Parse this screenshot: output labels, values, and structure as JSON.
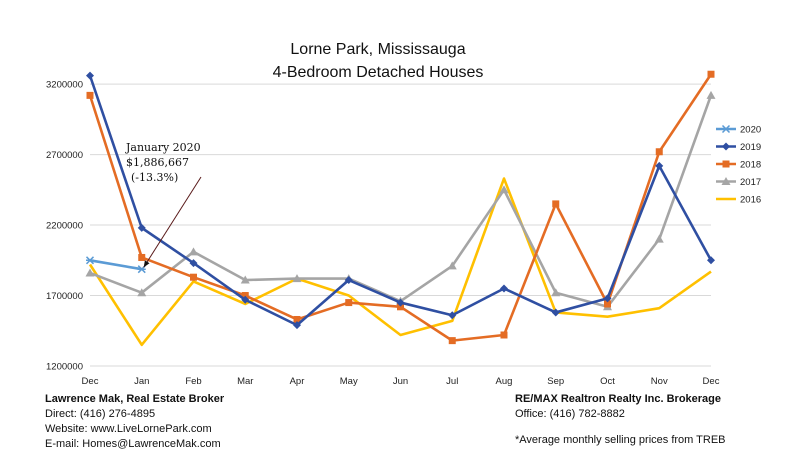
{
  "chart_data": {
    "type": "line",
    "title": [
      "Lorne Park, Mississauga",
      "4-Bedroom Detached Houses"
    ],
    "categories": [
      "Dec",
      "Jan",
      "Feb",
      "Mar",
      "Apr",
      "May",
      "Jun",
      "Jul",
      "Aug",
      "Sep",
      "Oct",
      "Nov",
      "Dec"
    ],
    "ylim": [
      1200000,
      3300000
    ],
    "yticks": [
      "1200000",
      "1700000",
      "2200000",
      "2700000",
      "3200000"
    ],
    "grid": "horizontal",
    "legend_position": "right",
    "series": [
      {
        "name": "2020",
        "color": "#5b9bd5",
        "marker": "x",
        "values": [
          1950000,
          1886667,
          null,
          null,
          null,
          null,
          null,
          null,
          null,
          null,
          null,
          null,
          null
        ]
      },
      {
        "name": "2019",
        "color": "#2f4fa2",
        "marker": "diamond",
        "values": [
          3260000,
          2180000,
          1930000,
          1670000,
          1490000,
          1810000,
          1650000,
          1560000,
          1750000,
          1580000,
          1680000,
          2620000,
          1950000
        ]
      },
      {
        "name": "2018",
        "color": "#e46c24",
        "marker": "square",
        "values": [
          3120000,
          1970000,
          1830000,
          1700000,
          1530000,
          1650000,
          1620000,
          1380000,
          1420000,
          2350000,
          1640000,
          2720000,
          3270000
        ]
      },
      {
        "name": "2017",
        "color": "#a5a5a5",
        "marker": "triangle",
        "values": [
          1860000,
          1720000,
          2010000,
          1810000,
          1820000,
          1820000,
          1660000,
          1910000,
          2450000,
          1720000,
          1620000,
          2100000,
          3120000
        ]
      },
      {
        "name": "2016",
        "color": "#ffc000",
        "marker": "none",
        "values": [
          1920000,
          1350000,
          1800000,
          1640000,
          1820000,
          1700000,
          1420000,
          1520000,
          2530000,
          1580000,
          1550000,
          1610000,
          1870000
        ]
      }
    ],
    "annotation": {
      "lines": [
        "January 2020",
        "$1,886,667",
        "(-13.3%)"
      ],
      "target_series": "2020",
      "target_index": 1
    }
  },
  "footer": {
    "left": {
      "name": "Lawrence Mak, Real Estate Broker",
      "direct": "Direct:  (416) 276-4895",
      "website": "Website:  www.LiveLornePark.com",
      "email": "E-mail:  Homes@LawrenceMak.com"
    },
    "right": {
      "brokerage": "RE/MAX Realtron Realty Inc. Brokerage",
      "office": "Office: (416) 782-8882"
    },
    "note": "*Average monthly selling prices from TREB"
  }
}
